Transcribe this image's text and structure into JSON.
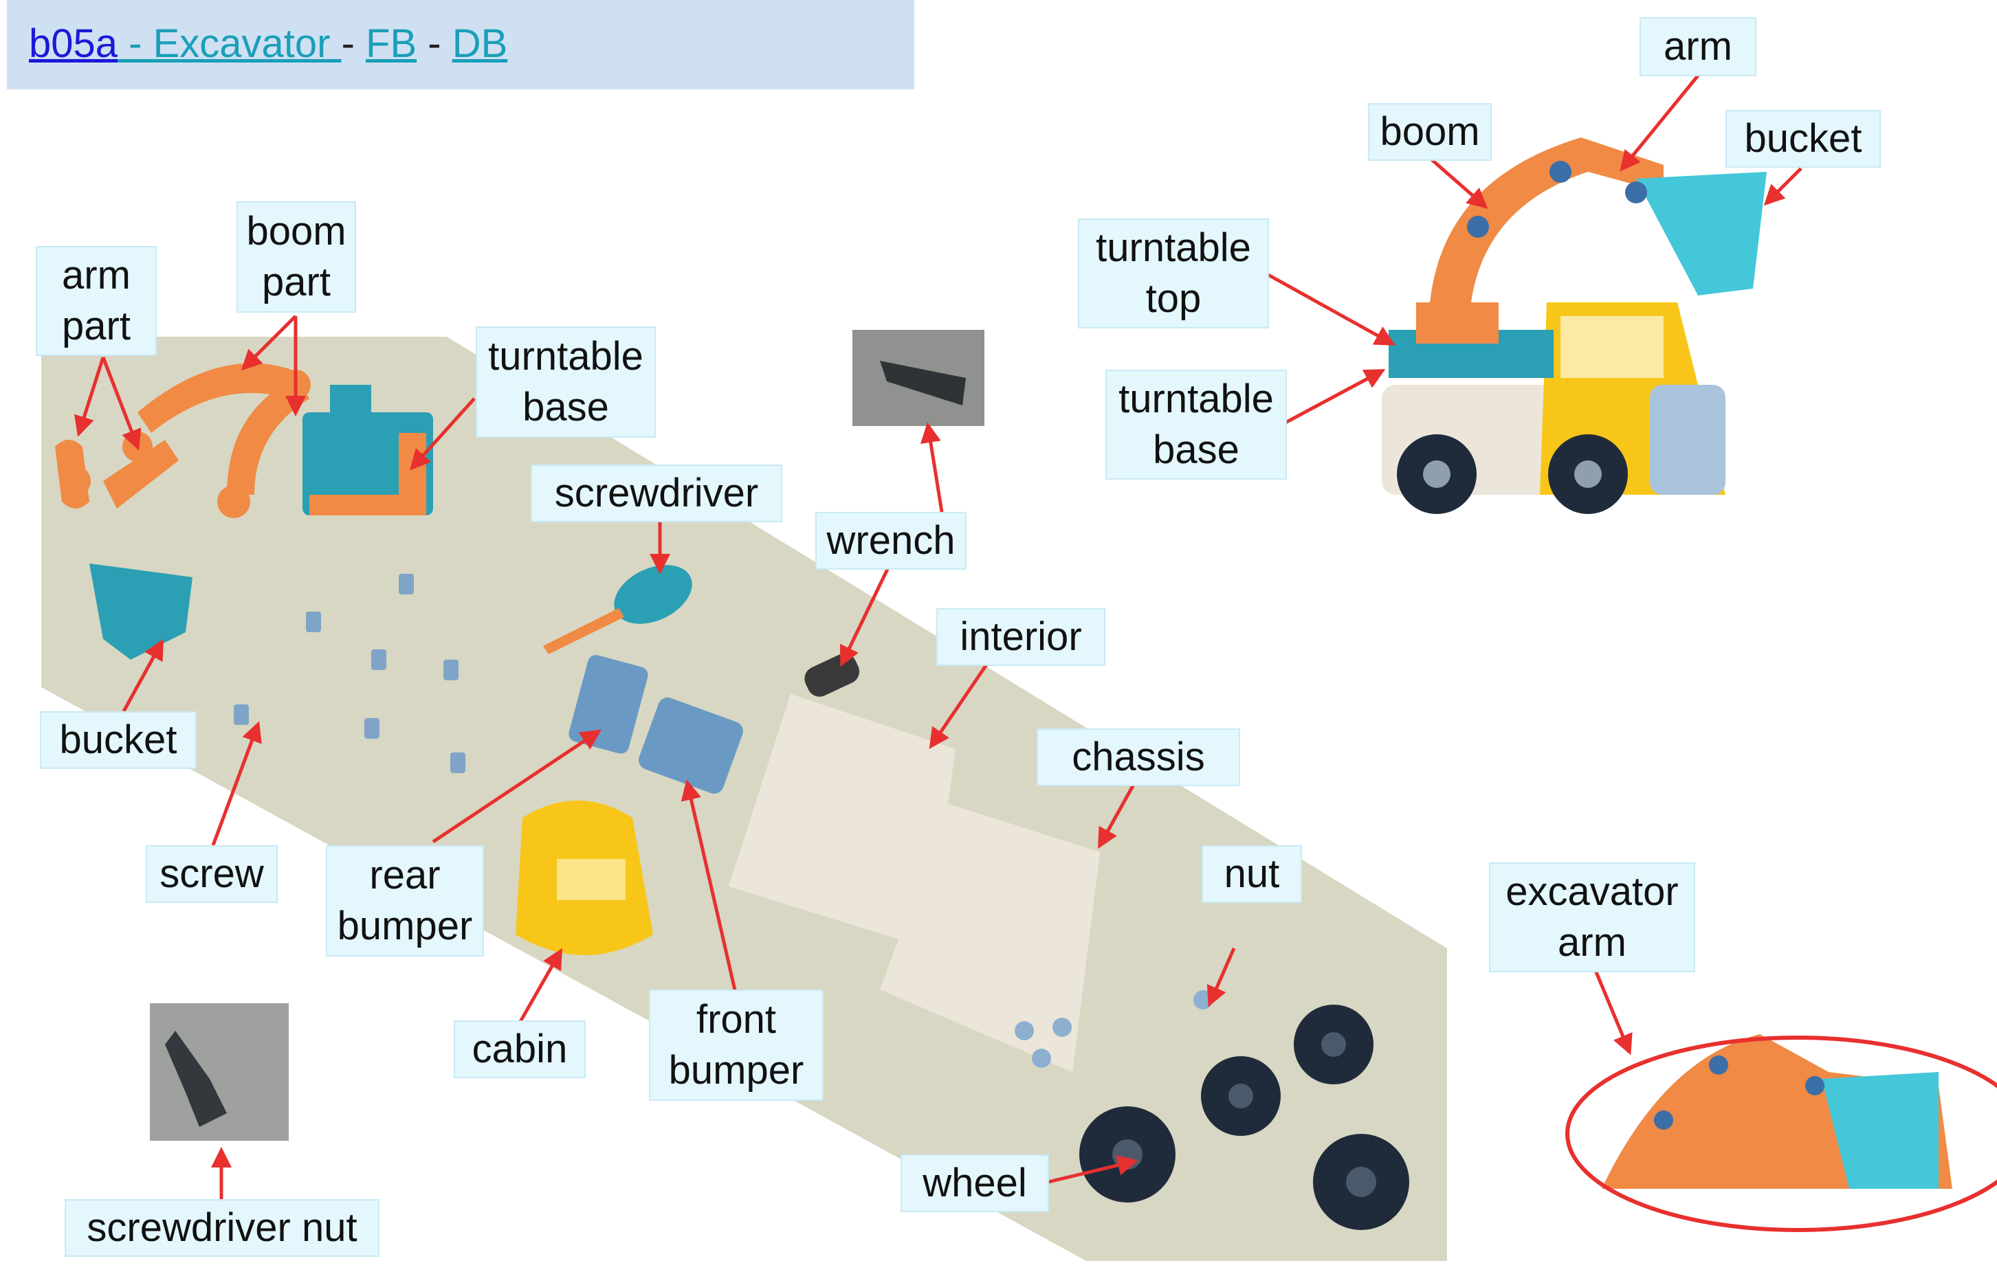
{
  "header": {
    "code": "b05a",
    "title": " - Excavator ",
    "dash1": " - ",
    "fb": "FB",
    "dash2": "  - ",
    "db": "DB"
  },
  "labels": {
    "arm_part": "arm\npart",
    "boom_part": "boom\npart",
    "turntable_base_left": "turntable\nbase",
    "screwdriver": "screwdriver",
    "wrench": "wrench",
    "interior": "interior",
    "chassis": "chassis",
    "bucket_left": "bucket",
    "screw": "screw",
    "rear_bumper": "rear\nbumper",
    "cabin": "cabin",
    "front_bumper": "front\nbumper",
    "nut": "nut",
    "wheel": "wheel",
    "screwdriver_nut": "screwdriver nut",
    "arm": "arm",
    "boom": "boom",
    "bucket_right": "bucket",
    "turntable_top": "turntable\ntop",
    "turntable_base_right": "turntable\nbase",
    "excavator_arm": "excavator\narm"
  },
  "colors": {
    "header_bg": "#cfe0f3",
    "label_bg": "#e3f7fd",
    "arrow": "#e8302f",
    "link_blue": "#1a1ad6",
    "link_teal": "#1a9fb8",
    "orange_part": "#f08a45",
    "teal_part": "#2b9fb3",
    "blue_part": "#6a9ac4",
    "yellow_part": "#f7c618",
    "white_part": "#ece6da",
    "wheel": "#1f2b3a",
    "mat": "#d8d7c3"
  }
}
